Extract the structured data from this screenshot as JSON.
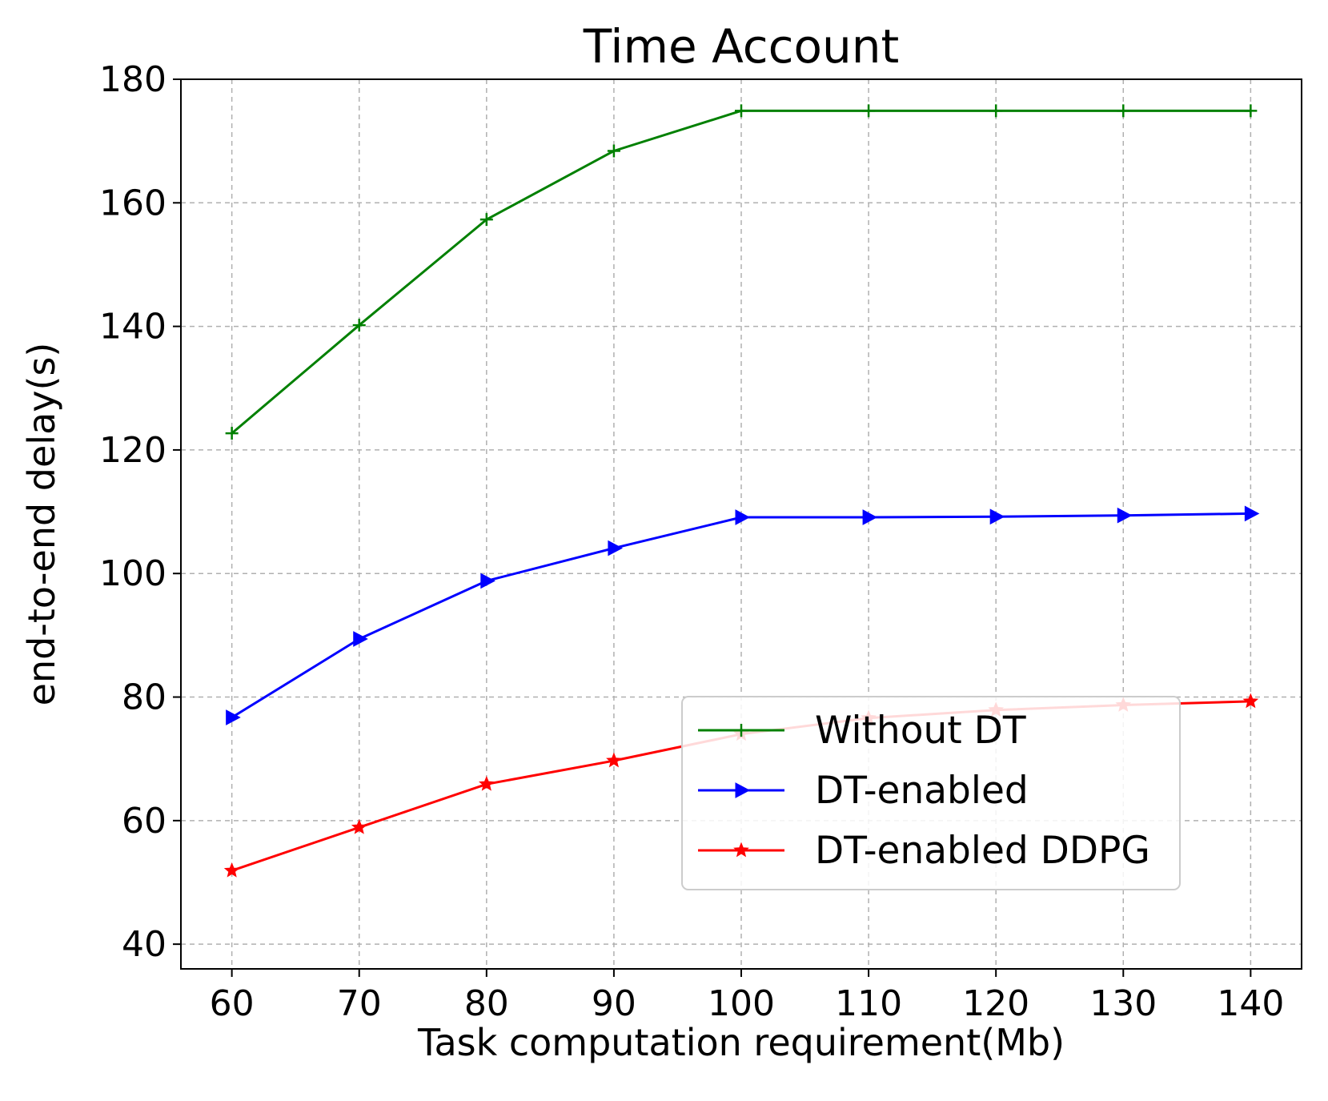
{
  "chart_data": {
    "type": "line",
    "title": "Time Account",
    "xlabel": "Task computation requirement(Mb)",
    "ylabel": "end-to-end delay(s)",
    "x": [
      60,
      70,
      80,
      90,
      100,
      110,
      120,
      130,
      140
    ],
    "xlim": [
      56,
      144
    ],
    "ylim": [
      36,
      180
    ],
    "xticks": [
      60,
      70,
      80,
      90,
      100,
      110,
      120,
      130,
      140
    ],
    "yticks": [
      40,
      60,
      80,
      100,
      120,
      140,
      160,
      180
    ],
    "grid": true,
    "legend_position": "lower right",
    "series": [
      {
        "name": "Without DT",
        "color": "#008000",
        "marker": "plus",
        "values": [
          122.7,
          140.2,
          157.3,
          168.4,
          174.9,
          174.9,
          174.9,
          174.9,
          174.9
        ]
      },
      {
        "name": "DT-enabled",
        "color": "#0000ff",
        "marker": "triangle-right",
        "values": [
          76.7,
          89.4,
          98.8,
          104.1,
          109.1,
          109.1,
          109.2,
          109.4,
          109.7
        ]
      },
      {
        "name": "DT-enabled DDPG",
        "color": "#ff0000",
        "marker": "star",
        "values": [
          51.9,
          58.9,
          65.9,
          69.7,
          74.0,
          76.6,
          77.9,
          78.7,
          79.3
        ]
      }
    ]
  }
}
